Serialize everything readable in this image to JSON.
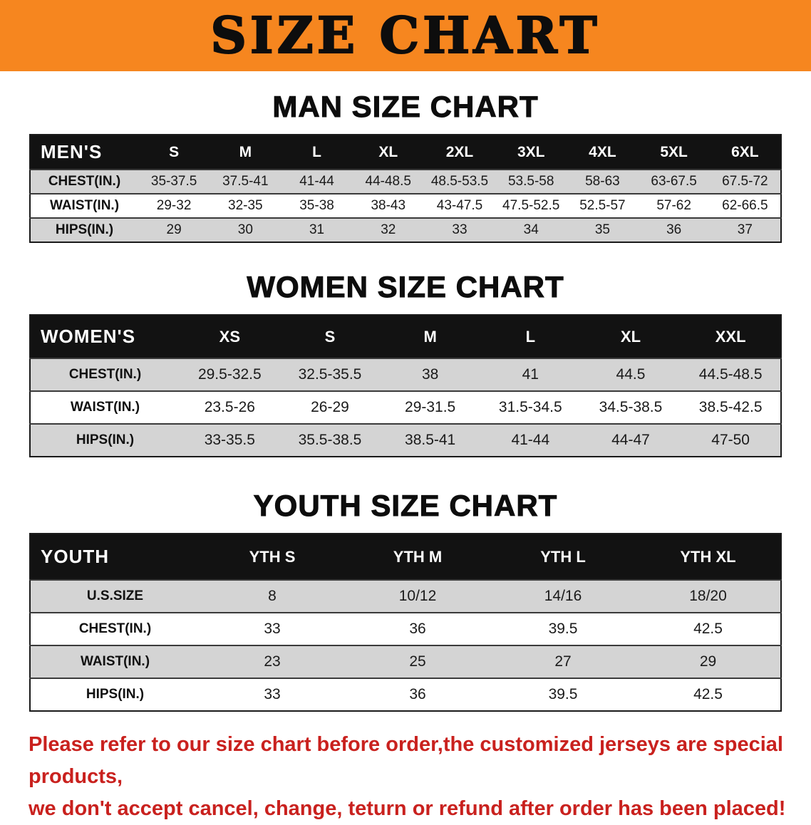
{
  "banner": {
    "title": "SIZE CHART",
    "bg_color": "#F6861F"
  },
  "sections": [
    {
      "heading": "MAN SIZE CHART",
      "table": {
        "header": [
          "MEN'S",
          "S",
          "M",
          "L",
          "XL",
          "2XL",
          "3XL",
          "4XL",
          "5XL",
          "6XL"
        ],
        "rows": [
          [
            "CHEST(IN.)",
            "35-37.5",
            "37.5-41",
            "41-44",
            "44-48.5",
            "48.5-53.5",
            "53.5-58",
            "58-63",
            "63-67.5",
            "67.5-72"
          ],
          [
            "WAIST(IN.)",
            "29-32",
            "32-35",
            "35-38",
            "38-43",
            "43-47.5",
            "47.5-52.5",
            "52.5-57",
            "57-62",
            "62-66.5"
          ],
          [
            "HIPS(IN.)",
            "29",
            "30",
            "31",
            "32",
            "33",
            "34",
            "35",
            "36",
            "37"
          ]
        ]
      }
    },
    {
      "heading": "WOMEN SIZE CHART",
      "table": {
        "header": [
          "WOMEN'S",
          "XS",
          "S",
          "M",
          "L",
          "XL",
          "XXL"
        ],
        "rows": [
          [
            "CHEST(IN.)",
            "29.5-32.5",
            "32.5-35.5",
            "38",
            "41",
            "44.5",
            "44.5-48.5"
          ],
          [
            "WAIST(IN.)",
            "23.5-26",
            "26-29",
            "29-31.5",
            "31.5-34.5",
            "34.5-38.5",
            "38.5-42.5"
          ],
          [
            "HIPS(IN.)",
            "33-35.5",
            "35.5-38.5",
            "38.5-41",
            "41-44",
            "44-47",
            "47-50"
          ]
        ]
      }
    },
    {
      "heading": "YOUTH SIZE CHART",
      "table": {
        "header": [
          "YOUTH",
          "YTH S",
          "YTH M",
          "YTH L",
          "YTH XL"
        ],
        "rows": [
          [
            "U.S.SIZE",
            "8",
            "10/12",
            "14/16",
            "18/20"
          ],
          [
            "CHEST(IN.)",
            "33",
            "36",
            "39.5",
            "42.5"
          ],
          [
            "WAIST(IN.)",
            "23",
            "25",
            "27",
            "29"
          ],
          [
            "HIPS(IN.)",
            "33",
            "36",
            "39.5",
            "42.5"
          ]
        ]
      }
    }
  ],
  "disclaimer": {
    "line1": "Please refer to our size chart before order,the customized jerseys are special products,",
    "line2": "we don't accept cancel, change, teturn or refund after order has been placed!",
    "color": "#C9211E"
  }
}
